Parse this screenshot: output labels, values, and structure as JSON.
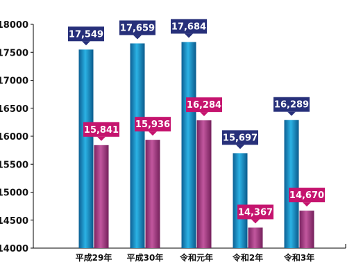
{
  "chart_data": {
    "type": "bar",
    "categories": [
      "平成29年",
      "平成30年",
      "令和元年",
      "令和2年",
      "令和3年"
    ],
    "series": [
      {
        "values": [
          17549,
          17659,
          17684,
          15697,
          16289
        ],
        "color": "#1a8cc4",
        "label_color": "#27307a"
      },
      {
        "values": [
          15841,
          15936,
          16284,
          14367,
          14670
        ],
        "color": "#a3357e",
        "label_color": "#c5146e"
      }
    ],
    "value_labels": [
      [
        "17,549",
        "17,659",
        "17,684",
        "15,697",
        "16,289"
      ],
      [
        "15,841",
        "15,936",
        "16,284",
        "14,367",
        "14,670"
      ]
    ],
    "y_ticks": [
      "14000",
      "14500",
      "15000",
      "15500",
      "16000",
      "16500",
      "17000",
      "17500",
      "18000"
    ],
    "ylim": [
      14000,
      18000
    ],
    "grid": false,
    "title": "",
    "xlabel": "",
    "ylabel": ""
  }
}
